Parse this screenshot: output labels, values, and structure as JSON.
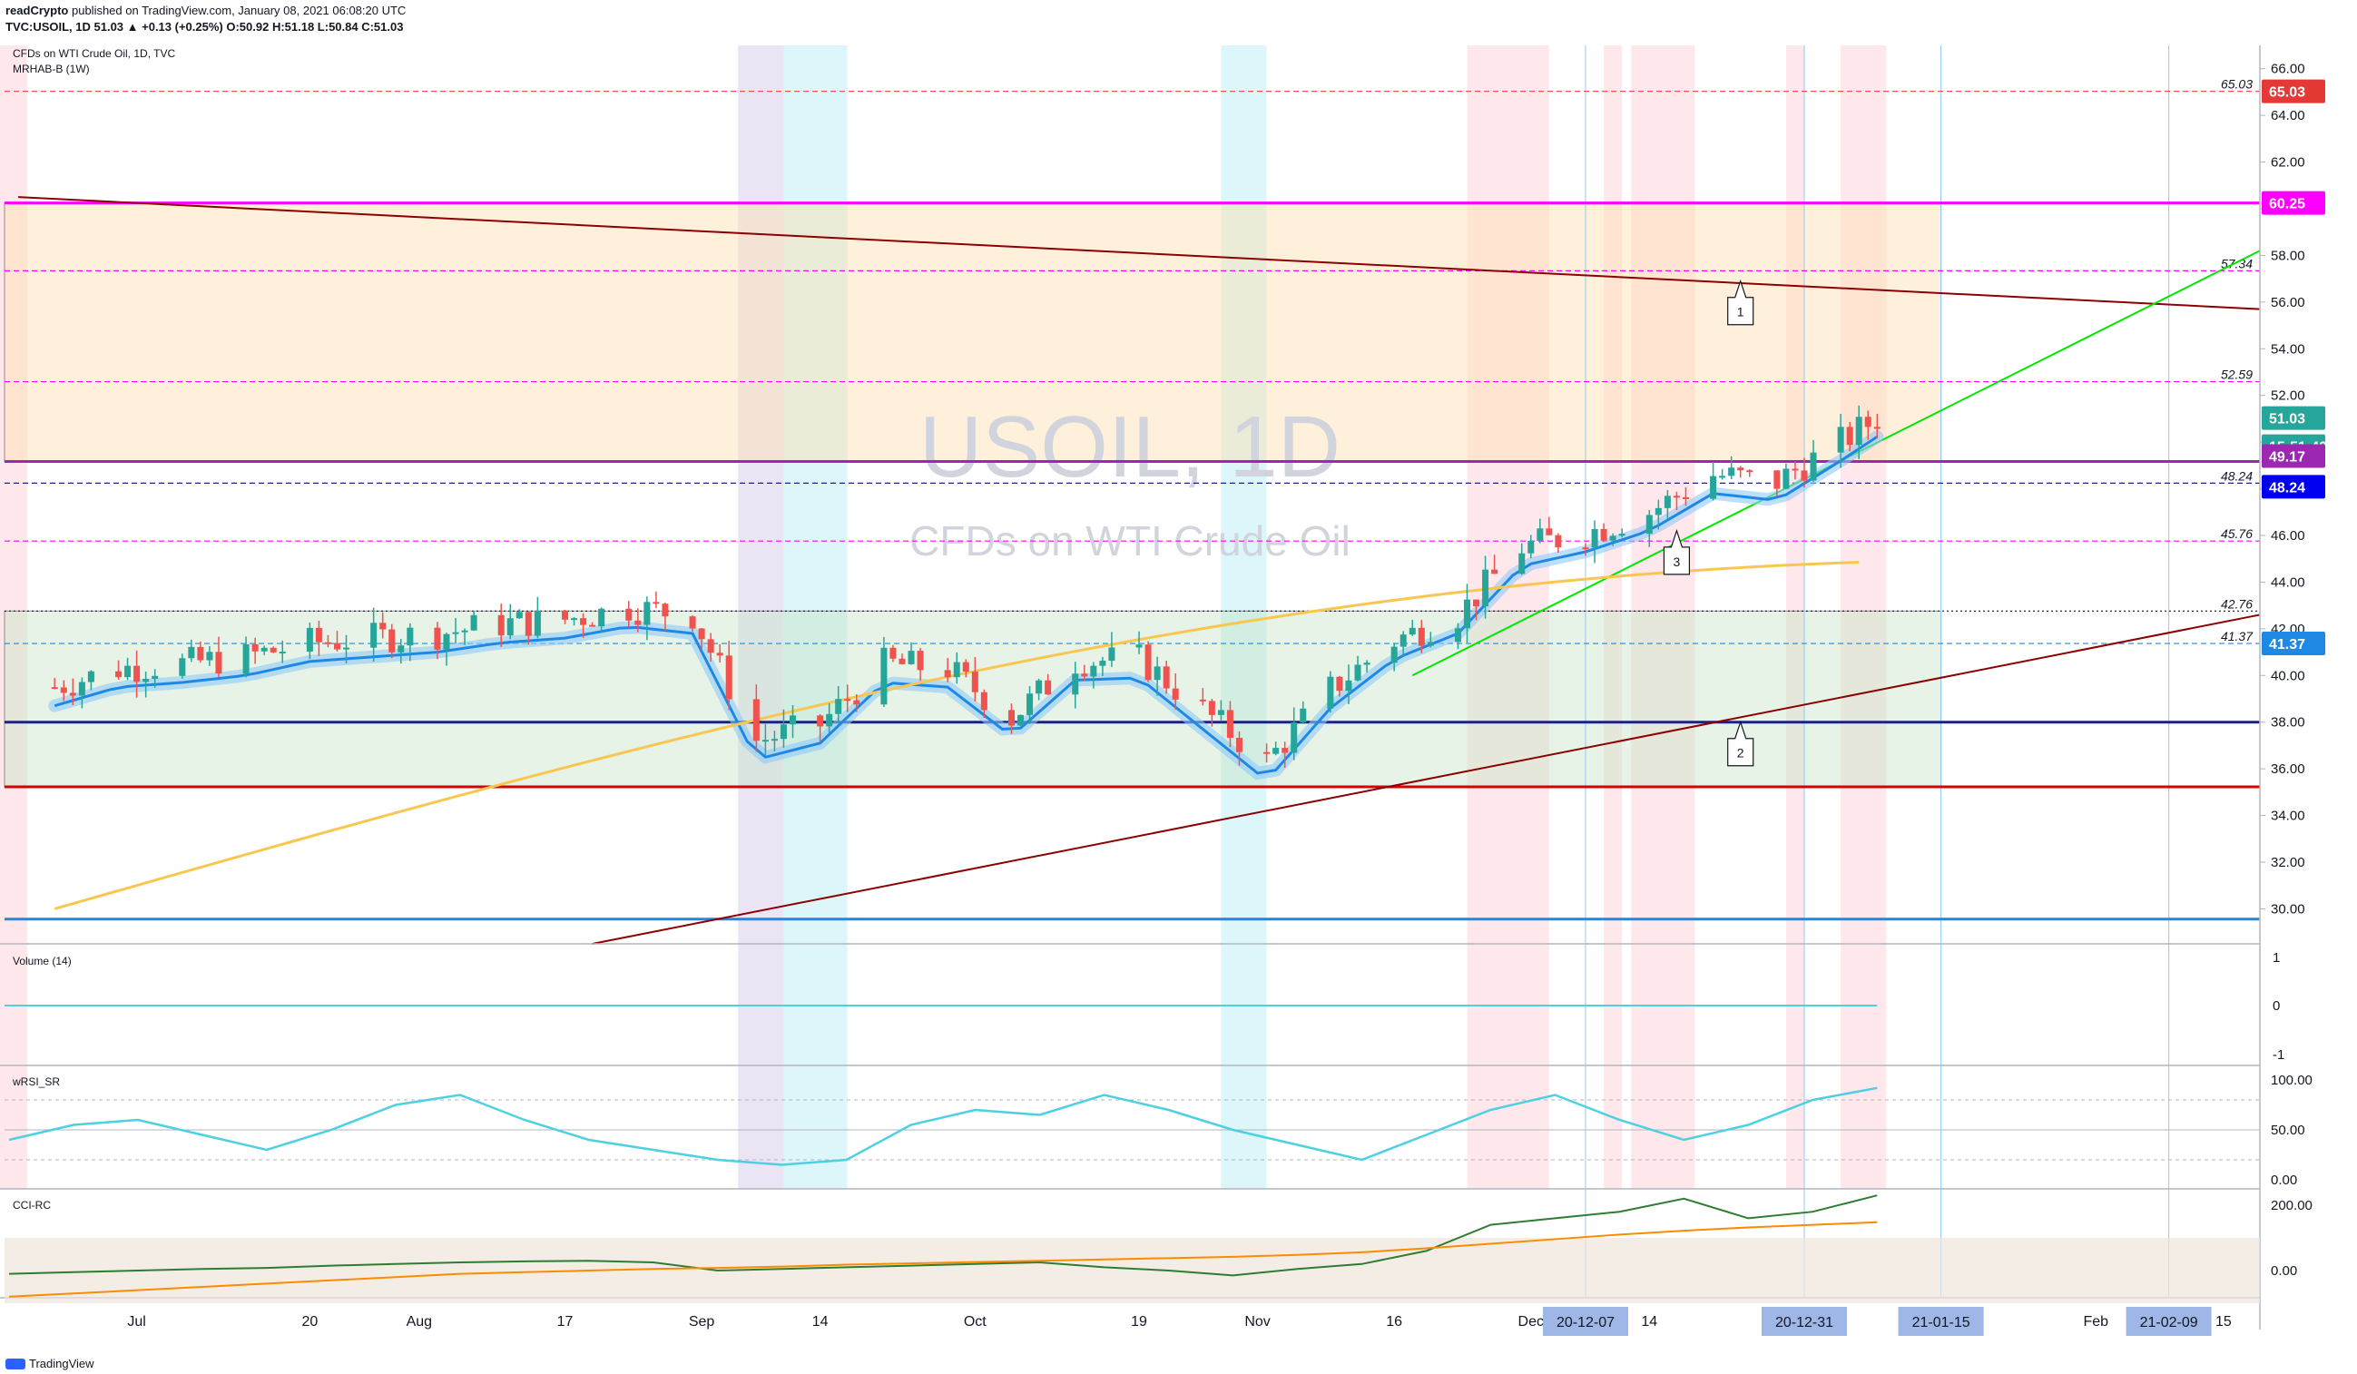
{
  "header": {
    "publisher": "readCrypto",
    "published_text": "published on TradingView.com, January 08, 2021 06:08:20 UTC",
    "quote": "TVC:USOIL, 1D 51.03 ▲ +0.13 (+0.25%) O:50.92 H:51.18 L:50.84 C:51.03"
  },
  "legend": {
    "title": "CFDs on WTI Crude Oil, 1D, TVC",
    "indicator": "MRHAB-B (1W)"
  },
  "watermark": {
    "symbol": "USOIL, 1D",
    "name": "CFDs on WTI Crude Oil"
  },
  "footer": {
    "brand": "TradingView"
  },
  "colors": {
    "bull": "#26a69a",
    "bear": "#ef5350",
    "magenta": "#ff00ff",
    "purple": "#9c27b0",
    "darkred": "#8b0000",
    "navy": "#1a237e",
    "blue": "#1e88e5",
    "green": "#00e600"
  },
  "chart_data": [
    {
      "type": "candlestick",
      "title": "CFDs on WTI Crude Oil, 1D, TVC",
      "ylim": [
        28.5,
        67
      ],
      "y_ticks": [
        "66.00",
        "64.00",
        "62.00",
        "60.00",
        "58.00",
        "56.00",
        "54.00",
        "52.00",
        "50.00",
        "48.00",
        "46.00",
        "44.00",
        "42.00",
        "40.00",
        "38.00",
        "36.00",
        "34.00",
        "32.00",
        "30.00"
      ],
      "x_ticks": [
        "Jul",
        "20",
        "Aug",
        "17",
        "Sep",
        "14",
        "Oct",
        "19",
        "Nov",
        "16",
        "Dec",
        "14",
        "Feb",
        "15"
      ],
      "date_badges": [
        "20-12-07",
        "20-12-31",
        "21-01-15",
        "21-02-09"
      ],
      "close_path": [
        {
          "x": "2020-06-22",
          "y": 39.5
        },
        {
          "x": "2020-06-29",
          "y": 40.3
        },
        {
          "x": "2020-07-06",
          "y": 40.5
        },
        {
          "x": "2020-07-13",
          "y": 40.8
        },
        {
          "x": "2020-07-20",
          "y": 41.4
        },
        {
          "x": "2020-07-27",
          "y": 41.6
        },
        {
          "x": "2020-08-03",
          "y": 41.8
        },
        {
          "x": "2020-08-10",
          "y": 42.2
        },
        {
          "x": "2020-08-17",
          "y": 42.4
        },
        {
          "x": "2020-08-24",
          "y": 42.9
        },
        {
          "x": "2020-08-31",
          "y": 42.6
        },
        {
          "x": "2020-09-07",
          "y": 37.2
        },
        {
          "x": "2020-09-14",
          "y": 37.9
        },
        {
          "x": "2020-09-21",
          "y": 40.5
        },
        {
          "x": "2020-09-28",
          "y": 40.3
        },
        {
          "x": "2020-10-05",
          "y": 38.2
        },
        {
          "x": "2020-10-12",
          "y": 40.6
        },
        {
          "x": "2020-10-19",
          "y": 40.7
        },
        {
          "x": "2020-10-26",
          "y": 38.5
        },
        {
          "x": "2020-11-02",
          "y": 36.3
        },
        {
          "x": "2020-11-09",
          "y": 39.4
        },
        {
          "x": "2020-11-16",
          "y": 41.5
        },
        {
          "x": "2020-11-23",
          "y": 42.6
        },
        {
          "x": "2020-11-30",
          "y": 45.5
        },
        {
          "x": "2020-12-07",
          "y": 46.1
        },
        {
          "x": "2020-12-14",
          "y": 47.0
        },
        {
          "x": "2020-12-21",
          "y": 48.6
        },
        {
          "x": "2020-12-28",
          "y": 48.3
        },
        {
          "x": "2021-01-04",
          "y": 50.0
        },
        {
          "x": "2021-01-08",
          "y": 51.03
        }
      ],
      "horizontal_levels": [
        {
          "value": 65.03,
          "label": "65.03",
          "style": "dashed",
          "color": "#ef5350"
        },
        {
          "value": 60.25,
          "label": "60.25",
          "style": "solid",
          "color": "#ff00ff"
        },
        {
          "value": 57.34,
          "label": "57.34",
          "style": "dashed",
          "color": "#ff00ff"
        },
        {
          "value": 52.59,
          "label": "52.59",
          "style": "dashed",
          "color": "#ff00ff"
        },
        {
          "value": 49.17,
          "label": "49.17",
          "style": "solid",
          "color": "#9c27b0"
        },
        {
          "value": 48.24,
          "label": "48.24",
          "style": "dashed",
          "color": "#1a237e"
        },
        {
          "value": 45.76,
          "label": "45.76",
          "style": "dashed",
          "color": "#ff00ff"
        },
        {
          "value": 42.76,
          "label": "42.76",
          "style": "dotted",
          "color": "#131722"
        },
        {
          "value": 41.37,
          "label": "41.37",
          "style": "dashed",
          "color": "#1e88e5"
        },
        {
          "value": 38.0,
          "label": "38.00",
          "style": "solid",
          "color": "#1a237e"
        },
        {
          "value": 35.23,
          "label": "35.23",
          "style": "solid",
          "color": "#d50000"
        },
        {
          "value": 29.56,
          "label": "29.56",
          "style": "solid",
          "color": "#1e88e5"
        }
      ],
      "price_badges": [
        {
          "label": "65.03",
          "color": "#e53935"
        },
        {
          "label": "60.25",
          "color": "#ff00ff"
        },
        {
          "label": "51.03",
          "color": "#26a69a"
        },
        {
          "label": "15:51:40",
          "color": "#26a69a"
        },
        {
          "label": "49.17",
          "color": "#9c27b0"
        },
        {
          "label": "48.24",
          "color": "#0000ee"
        },
        {
          "label": "41.37",
          "color": "#1e88e5"
        }
      ],
      "trendlines": [
        {
          "name": "descending",
          "from": {
            "x": "2020-06-18",
            "y": 60.5
          },
          "to": {
            "x": "2021-02-19",
            "y": 55.7
          }
        },
        {
          "name": "ascending",
          "from": {
            "x": "2020-08-20",
            "y": 28.5
          },
          "to": {
            "x": "2021-02-19",
            "y": 42.6
          }
        },
        {
          "name": "green",
          "from": {
            "x": "2020-11-18",
            "y": 40.0
          },
          "to": {
            "x": "2021-02-19",
            "y": 58.2
          }
        }
      ],
      "callouts": [
        "1",
        "2",
        "3"
      ]
    },
    {
      "type": "line",
      "title": "Volume (14)",
      "y_ticks": [
        "1",
        "0",
        "-1"
      ],
      "series": [
        {
          "values": [
            0
          ]
        }
      ]
    },
    {
      "type": "line",
      "title": "wRSI_SR",
      "ylim": [
        0,
        100
      ],
      "y_ticks": [
        "100.00",
        "50.00",
        "0.00"
      ],
      "series": [
        {
          "values": [
            40,
            55,
            60,
            45,
            30,
            50,
            75,
            85,
            60,
            40,
            30,
            20,
            15,
            20,
            55,
            70,
            65,
            85,
            70,
            50,
            35,
            20,
            45,
            70,
            85,
            60,
            40,
            55,
            80,
            92
          ]
        }
      ]
    },
    {
      "type": "line",
      "title": "CCI-RC",
      "y_ticks": [
        "200.00",
        "0.00"
      ],
      "series": [
        {
          "values": [
            -10,
            -5,
            0,
            5,
            8,
            15,
            20,
            25,
            28,
            30,
            25,
            0,
            5,
            10,
            15,
            20,
            25,
            10,
            0,
            -15,
            5,
            20,
            60,
            140,
            160,
            180,
            220,
            160,
            180,
            230
          ]
        },
        {
          "values": [
            -80,
            -70,
            -60,
            -50,
            -40,
            -30,
            -20,
            -10,
            -5,
            0,
            5,
            8,
            12,
            18,
            22,
            26,
            30,
            34,
            38,
            42,
            48,
            56,
            68,
            82,
            96,
            110,
            122,
            132,
            140,
            148
          ]
        }
      ]
    }
  ]
}
